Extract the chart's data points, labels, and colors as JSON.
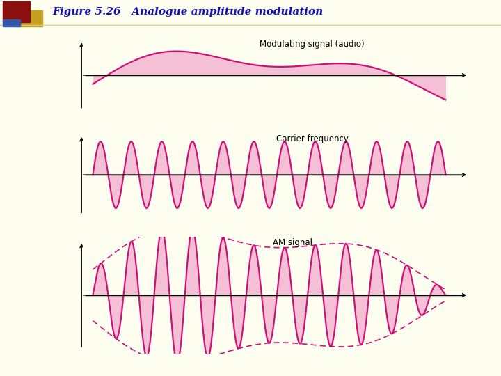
{
  "title_bold": "Figure 5.26",
  "title_italic": "   Analogue amplitude modulation",
  "title_color": "#1111BB",
  "background_color": "#FDFDF0",
  "panel_bg": "#FFFFFF",
  "signal_color": "#CC1177",
  "fill_color": "#F5C0D5",
  "dashed_color": "#CC1177",
  "label1": "Modulating signal (audio)",
  "label2": "Carrier frequency",
  "label3": "AM signal",
  "header_line_color": "#CCCC88"
}
